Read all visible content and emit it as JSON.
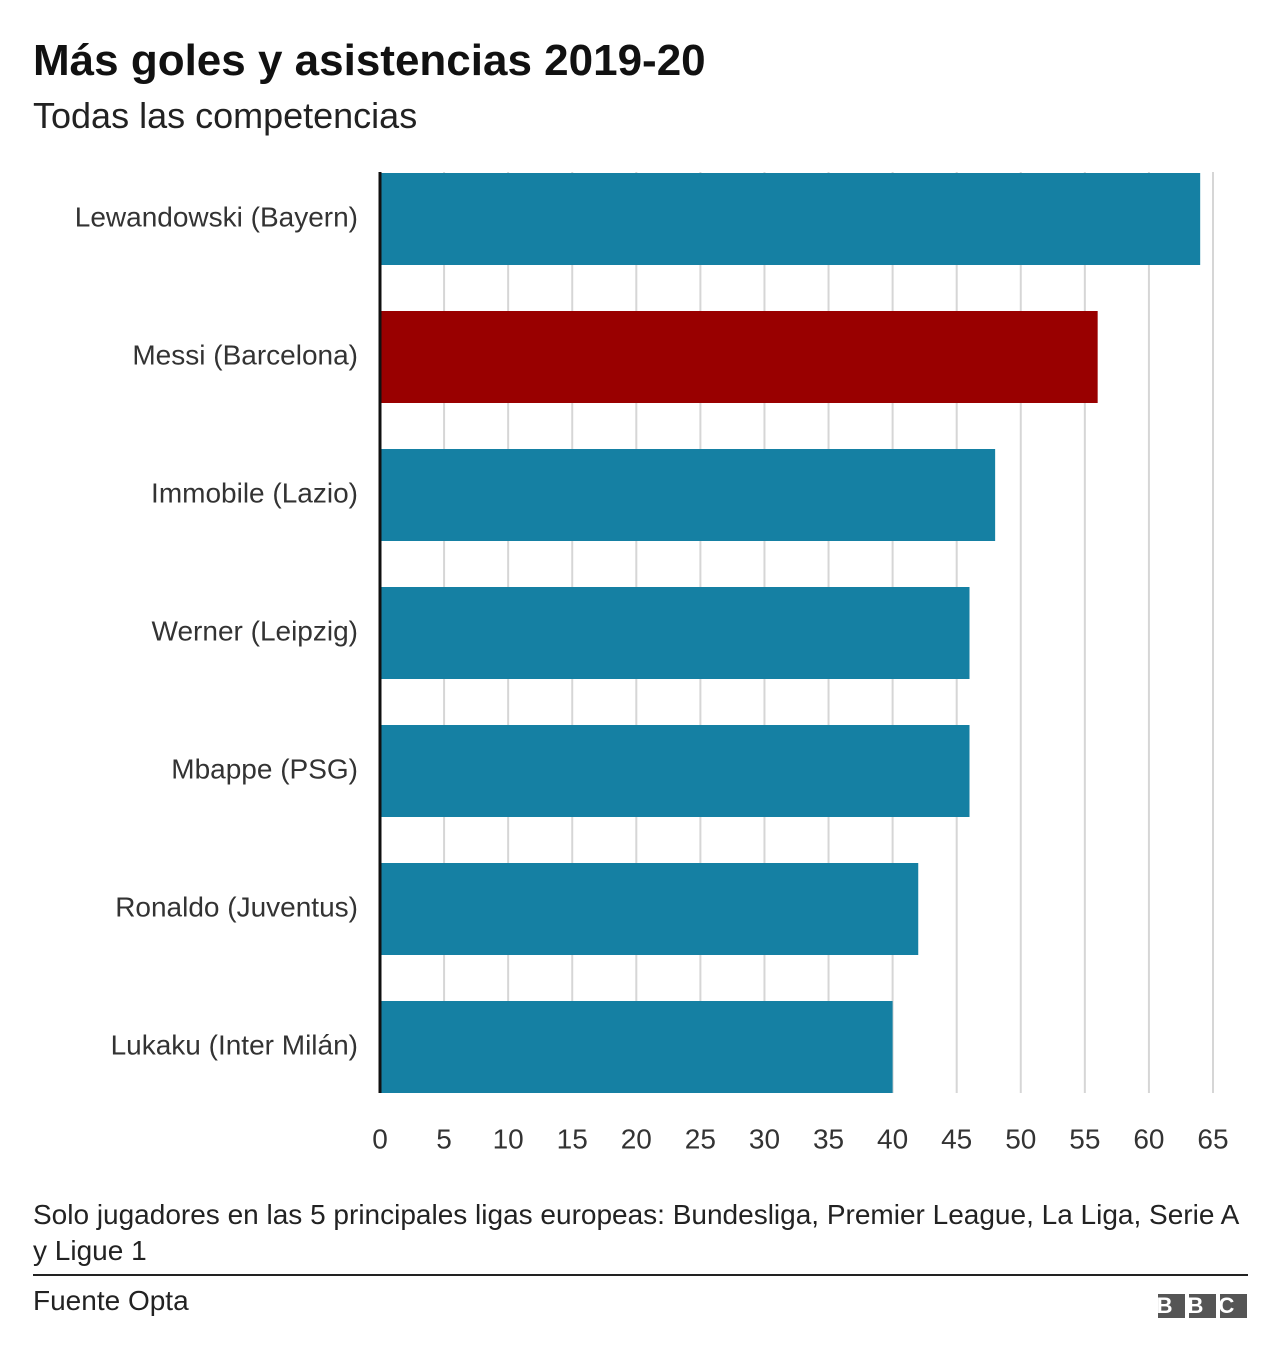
{
  "chart_data": {
    "type": "bar",
    "orientation": "horizontal",
    "title": "Más goles y asistencias 2019-20",
    "subtitle": "Todas las competencias",
    "categories": [
      "Lewandowski (Bayern)",
      "Messi (Barcelona)",
      "Immobile (Lazio)",
      "Werner (Leipzig)",
      "Mbappe (PSG)",
      "Ronaldo (Juventus)",
      "Lukaku (Inter Milán)"
    ],
    "values": [
      64,
      56,
      48,
      46,
      46,
      42,
      40
    ],
    "colors": [
      "#1580a3",
      "#990000",
      "#1580a3",
      "#1580a3",
      "#1580a3",
      "#1580a3",
      "#1580a3"
    ],
    "xlim": [
      0,
      65
    ],
    "xticks": [
      0,
      5,
      10,
      15,
      20,
      25,
      30,
      35,
      40,
      45,
      50,
      55,
      60,
      65
    ],
    "grid": true
  },
  "footnote": "Solo jugadores en las 5 principales ligas europeas: Bundesliga, Premier League, La Liga, Serie A y Ligue 1",
  "source": "Fuente Opta",
  "logo": "BBC"
}
